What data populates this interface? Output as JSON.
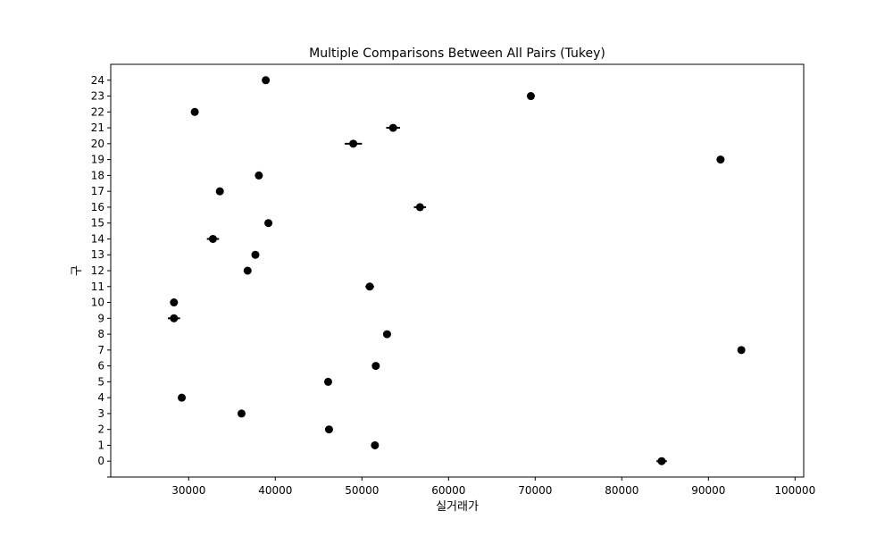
{
  "chart_data": {
    "type": "scatter",
    "title": "Multiple Comparisons Between All Pairs (Tukey)",
    "xlabel": "실거래가",
    "ylabel": "구",
    "xlim": [
      21000,
      101000
    ],
    "ylim": [
      -1,
      25
    ],
    "x_ticks": [
      "30000",
      "40000",
      "50000",
      "60000",
      "70000",
      "80000",
      "90000",
      "100000"
    ],
    "x_tick_values": [
      30000,
      40000,
      50000,
      60000,
      70000,
      80000,
      90000,
      100000
    ],
    "y_ticks": [
      "0",
      "1",
      "2",
      "3",
      "4",
      "5",
      "6",
      "7",
      "8",
      "9",
      "10",
      "11",
      "12",
      "13",
      "14",
      "15",
      "16",
      "17",
      "18",
      "19",
      "20",
      "21",
      "22",
      "23",
      "24"
    ],
    "grid": false,
    "marker_color": "#000000",
    "points": [
      {
        "group": "0",
        "mean": 84600,
        "halfwidth": 600
      },
      {
        "group": "1",
        "mean": 51500,
        "halfwidth": 400
      },
      {
        "group": "2",
        "mean": 46200,
        "halfwidth": 300
      },
      {
        "group": "3",
        "mean": 36100,
        "halfwidth": 300
      },
      {
        "group": "4",
        "mean": 29200,
        "halfwidth": 300
      },
      {
        "group": "5",
        "mean": 46100,
        "halfwidth": 300
      },
      {
        "group": "6",
        "mean": 51600,
        "halfwidth": 300
      },
      {
        "group": "7",
        "mean": 93800,
        "halfwidth": 300
      },
      {
        "group": "8",
        "mean": 52900,
        "halfwidth": 300
      },
      {
        "group": "9",
        "mean": 28300,
        "halfwidth": 700
      },
      {
        "group": "10",
        "mean": 28300,
        "halfwidth": 300
      },
      {
        "group": "11",
        "mean": 50900,
        "halfwidth": 500
      },
      {
        "group": "12",
        "mean": 36800,
        "halfwidth": 300
      },
      {
        "group": "13",
        "mean": 37700,
        "halfwidth": 300
      },
      {
        "group": "14",
        "mean": 32800,
        "halfwidth": 700
      },
      {
        "group": "15",
        "mean": 39200,
        "halfwidth": 400
      },
      {
        "group": "16",
        "mean": 56700,
        "halfwidth": 700
      },
      {
        "group": "17",
        "mean": 33600,
        "halfwidth": 300
      },
      {
        "group": "18",
        "mean": 38100,
        "halfwidth": 300
      },
      {
        "group": "19",
        "mean": 91400,
        "halfwidth": 300
      },
      {
        "group": "20",
        "mean": 49000,
        "halfwidth": 1000
      },
      {
        "group": "21",
        "mean": 53600,
        "halfwidth": 800
      },
      {
        "group": "22",
        "mean": 30700,
        "halfwidth": 400
      },
      {
        "group": "23",
        "mean": 69500,
        "halfwidth": 300
      },
      {
        "group": "24",
        "mean": 38900,
        "halfwidth": 400
      }
    ]
  }
}
